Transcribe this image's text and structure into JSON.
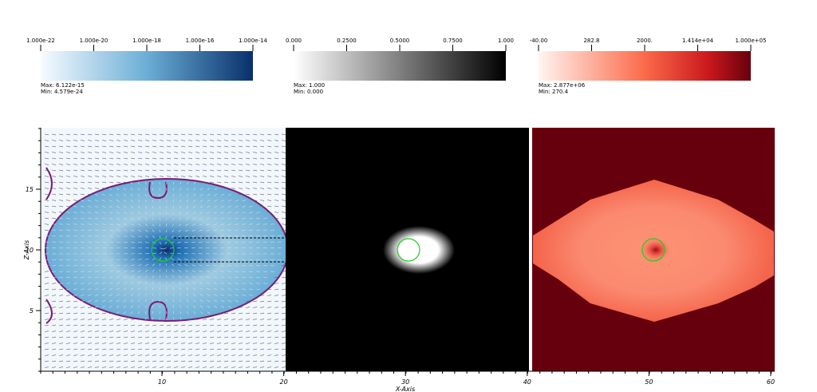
{
  "colorbars": [
    {
      "ticks": [
        "1.000e-22",
        "1.000e-20",
        "1.000e-18",
        "1.000e-16",
        "1.000e-14"
      ],
      "max": "Max: 6.122e-15",
      "min": "Min: 4.579e-24"
    },
    {
      "ticks": [
        "0.000",
        "0.2500",
        "0.5000",
        "0.7500",
        "1.000"
      ],
      "max": "Max: 1.000",
      "min": "Min: 0.000"
    },
    {
      "ticks": [
        "-40.00",
        "282.8",
        "2000.",
        "1.414e+04",
        "1.000e+05"
      ],
      "max": "Max: 2.877e+06",
      "min": "Min: 270.4"
    }
  ],
  "axes": {
    "x_label": "X-Axis",
    "y_label": "Z-Axis",
    "x_ticks": [
      "10",
      "20",
      "30",
      "40",
      "50",
      "60"
    ],
    "y_ticks": [
      "15",
      "10",
      "5"
    ]
  }
}
